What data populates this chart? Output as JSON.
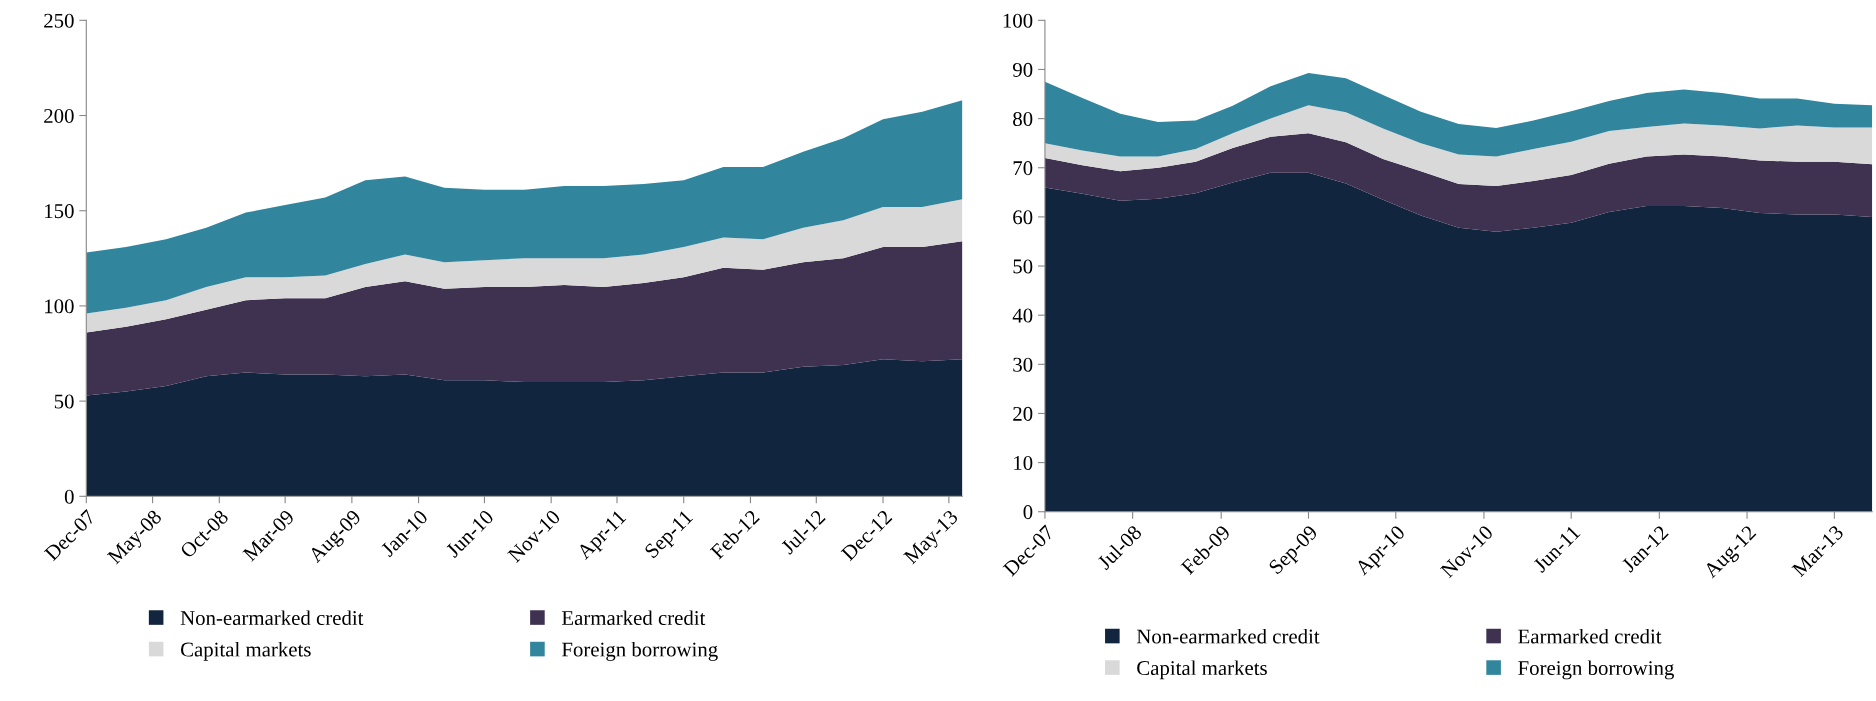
{
  "chart_data": [
    {
      "type": "area",
      "stacked": true,
      "x": [
        "2007-12",
        "2008-03",
        "2008-06",
        "2008-09",
        "2008-12",
        "2009-03",
        "2009-06",
        "2009-09",
        "2009-12",
        "2010-03",
        "2010-06",
        "2010-09",
        "2010-12",
        "2011-03",
        "2011-06",
        "2011-09",
        "2011-12",
        "2012-03",
        "2012-06",
        "2012-09",
        "2012-12",
        "2013-03",
        "2013-06"
      ],
      "series": [
        {
          "name": "Non-earmarked credit",
          "color": "#12253f",
          "values": [
            53,
            55,
            58,
            63,
            65,
            64,
            64,
            63,
            64,
            61,
            61,
            60,
            60,
            60,
            61,
            63,
            65,
            65,
            68,
            69,
            72,
            71,
            72
          ]
        },
        {
          "name": "Earmarked credit",
          "color": "#3f3150",
          "values": [
            33,
            34,
            35,
            35,
            38,
            40,
            40,
            47,
            49,
            48,
            49,
            50,
            51,
            50,
            51,
            52,
            55,
            54,
            55,
            56,
            59,
            60,
            62
          ]
        },
        {
          "name": "Capital markets",
          "color": "#d9d9d9",
          "values": [
            10,
            10,
            10,
            12,
            12,
            11,
            12,
            12,
            14,
            14,
            14,
            15,
            14,
            15,
            15,
            16,
            16,
            16,
            18,
            20,
            21,
            21,
            22
          ]
        },
        {
          "name": "Foreign borrowing",
          "color": "#31859c",
          "values": [
            32,
            32,
            32,
            31,
            34,
            38,
            41,
            44,
            41,
            39,
            37,
            36,
            38,
            38,
            37,
            35,
            37,
            38,
            40,
            43,
            46,
            50,
            52
          ]
        }
      ],
      "xlim": [
        "2007-12",
        "2013-06"
      ],
      "xticks": [
        {
          "value": "2007-12",
          "label": "Dec-07"
        },
        {
          "value": "2008-05",
          "label": "May-08"
        },
        {
          "value": "2008-10",
          "label": "Oct-08"
        },
        {
          "value": "2009-03",
          "label": "Mar-09"
        },
        {
          "value": "2009-08",
          "label": "Aug-09"
        },
        {
          "value": "2010-01",
          "label": "Jan-10"
        },
        {
          "value": "2010-06",
          "label": "Jun-10"
        },
        {
          "value": "2010-11",
          "label": "Nov-10"
        },
        {
          "value": "2011-04",
          "label": "Apr-11"
        },
        {
          "value": "2011-09",
          "label": "Sep-11"
        },
        {
          "value": "2012-02",
          "label": "Feb-12"
        },
        {
          "value": "2012-07",
          "label": "Jul-12"
        },
        {
          "value": "2012-12",
          "label": "Dec-12"
        },
        {
          "value": "2013-05",
          "label": "May-13"
        }
      ],
      "ylim": [
        0,
        250
      ],
      "yticks": [
        0,
        50,
        100,
        150,
        200,
        250
      ],
      "grid": false,
      "legend": "bottom"
    },
    {
      "type": "area",
      "stacked": true,
      "x": [
        "2007-12",
        "2008-03",
        "2008-06",
        "2008-09",
        "2008-12",
        "2009-03",
        "2009-06",
        "2009-09",
        "2009-12",
        "2010-03",
        "2010-06",
        "2010-09",
        "2010-12",
        "2011-03",
        "2011-06",
        "2011-09",
        "2011-12",
        "2012-03",
        "2012-06",
        "2012-09",
        "2012-12",
        "2013-03",
        "2013-06"
      ],
      "series": [
        {
          "name": "Non-earmarked credit",
          "color": "#12253f",
          "values": [
            66,
            64.7,
            63.3,
            63.7,
            64.8,
            67,
            69,
            69,
            66.8,
            63.5,
            60.3,
            57.8,
            57,
            57.8,
            58.8,
            61,
            62.2,
            62.2,
            61.8,
            60.8,
            60.5,
            60.5,
            60
          ]
        },
        {
          "name": "Earmarked credit",
          "color": "#3f3150",
          "values": [
            6,
            5.8,
            6,
            6.3,
            6.4,
            7,
            7.3,
            8,
            8.4,
            8.3,
            9,
            8.9,
            9.3,
            9.5,
            9.7,
            9.8,
            10.1,
            10.5,
            10.5,
            10.7,
            10.7,
            10.7,
            10.7
          ]
        },
        {
          "name": "Capital markets",
          "color": "#d9d9d9",
          "values": [
            3,
            3,
            3,
            2.3,
            2.6,
            3,
            3.7,
            5.7,
            6.1,
            6.2,
            5.7,
            6,
            6,
            6.5,
            6.8,
            6.7,
            6,
            6.3,
            6.3,
            6.5,
            7.4,
            7,
            7.5
          ]
        },
        {
          "name": "Foreign borrowing",
          "color": "#31859c",
          "values": [
            12.5,
            10.7,
            8.7,
            7,
            5.8,
            5.6,
            6.6,
            6.6,
            6.9,
            6.8,
            6.4,
            6.2,
            5.8,
            5.8,
            6.2,
            6.1,
            6.9,
            6.9,
            6.6,
            6.1,
            5.5,
            4.8,
            4.5
          ]
        }
      ],
      "xlim": [
        "2007-12",
        "2013-06"
      ],
      "xticks": [
        {
          "value": "2007-12",
          "label": "Dec-07"
        },
        {
          "value": "2008-07",
          "label": "Jul-08"
        },
        {
          "value": "2009-02",
          "label": "Feb-09"
        },
        {
          "value": "2009-09",
          "label": "Sep-09"
        },
        {
          "value": "2010-04",
          "label": "Apr-10"
        },
        {
          "value": "2010-11",
          "label": "Nov-10"
        },
        {
          "value": "2011-06",
          "label": "Jun-11"
        },
        {
          "value": "2012-01",
          "label": "Jan-12"
        },
        {
          "value": "2012-08",
          "label": "Aug-12"
        },
        {
          "value": "2013-03",
          "label": "Mar-13"
        }
      ],
      "ylim": [
        0,
        100
      ],
      "yticks": [
        0,
        10,
        20,
        30,
        40,
        50,
        60,
        70,
        80,
        90,
        100
      ],
      "grid": false,
      "legend": "bottom"
    }
  ]
}
